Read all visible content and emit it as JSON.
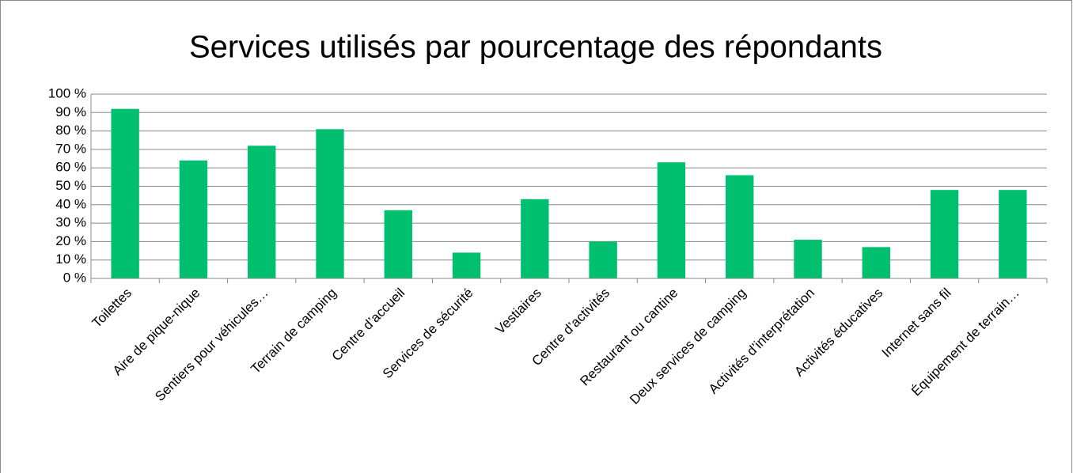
{
  "chart_data": {
    "type": "bar",
    "title": "Services utilisés par pourcentage des répondants",
    "categories": [
      "Toilettes",
      "Aire de pique-nique",
      "Sentiers pour véhicules…",
      "Terrain de camping",
      "Centre d’accueil",
      "Services de sécurité",
      "Vestiaires",
      "Centre d’activités",
      "Restaurant ou cantine",
      "Deux services de camping",
      "Activités d’interprétation",
      "Activités éducatives",
      "Internet sans fil",
      "Équipement de terrain…"
    ],
    "values": [
      92,
      64,
      72,
      81,
      37,
      14,
      43,
      20,
      63,
      56,
      21,
      17,
      48,
      48
    ],
    "color": "#00c070",
    "ylim": [
      0,
      100
    ],
    "yticks": [
      {
        "value": 0,
        "label": "0 %"
      },
      {
        "value": 10,
        "label": "10 %"
      },
      {
        "value": 20,
        "label": "20 %"
      },
      {
        "value": 30,
        "label": "30 %"
      },
      {
        "value": 40,
        "label": "40 %"
      },
      {
        "value": 50,
        "label": "50 %"
      },
      {
        "value": 60,
        "label": "60 %"
      },
      {
        "value": 70,
        "label": "70 %"
      },
      {
        "value": 80,
        "label": "80 %"
      },
      {
        "value": 90,
        "label": "90 %"
      },
      {
        "value": 100,
        "label": "100 %"
      }
    ],
    "grid": true
  }
}
